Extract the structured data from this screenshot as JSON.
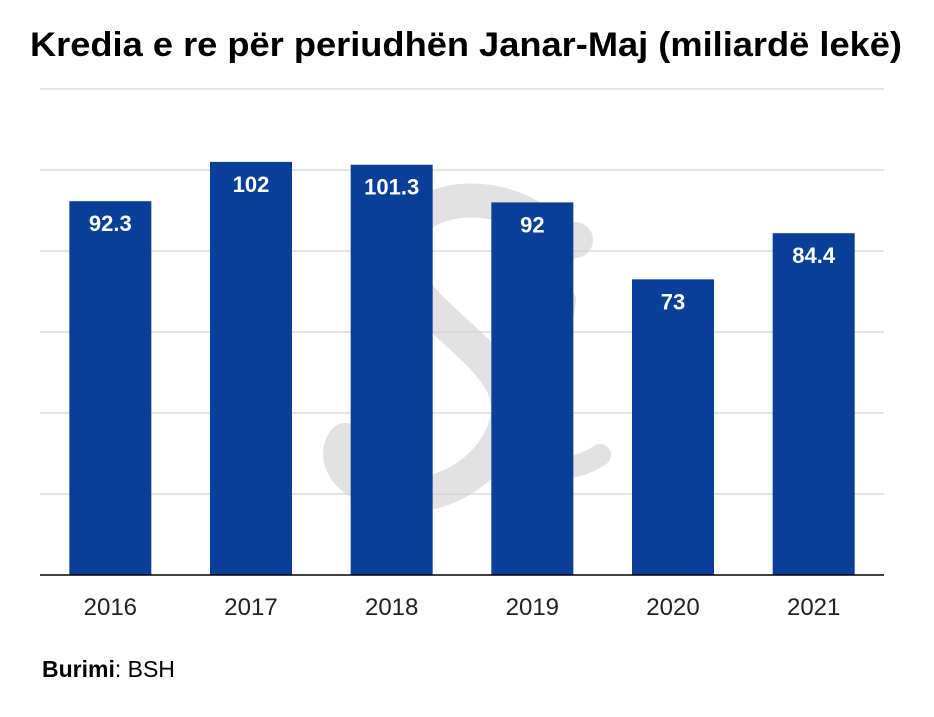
{
  "chart_data": {
    "type": "bar",
    "title": "Kredia e re për periudhën Janar-Maj (miliardë lekë)",
    "categories": [
      "2016",
      "2017",
      "2018",
      "2019",
      "2020",
      "2021"
    ],
    "values": [
      92.3,
      102,
      101.3,
      92,
      73,
      84.4
    ],
    "data_labels": [
      "92.3",
      "102",
      "101.3",
      "92",
      "73",
      "84.4"
    ],
    "xlabel": "",
    "ylabel": "",
    "ylim": [
      0,
      120
    ],
    "gridlines": [
      20,
      40,
      60,
      80,
      100,
      120
    ],
    "grid": true,
    "legend": "none",
    "colors": {
      "bar": "#0a3f99",
      "grid": "#dcdcdc",
      "label": "#ffffff",
      "watermark": "#d9d9d9"
    }
  },
  "source": {
    "label": "Burimi",
    "separator": ": ",
    "value": "BSH"
  },
  "watermark": {
    "text": "Si"
  }
}
